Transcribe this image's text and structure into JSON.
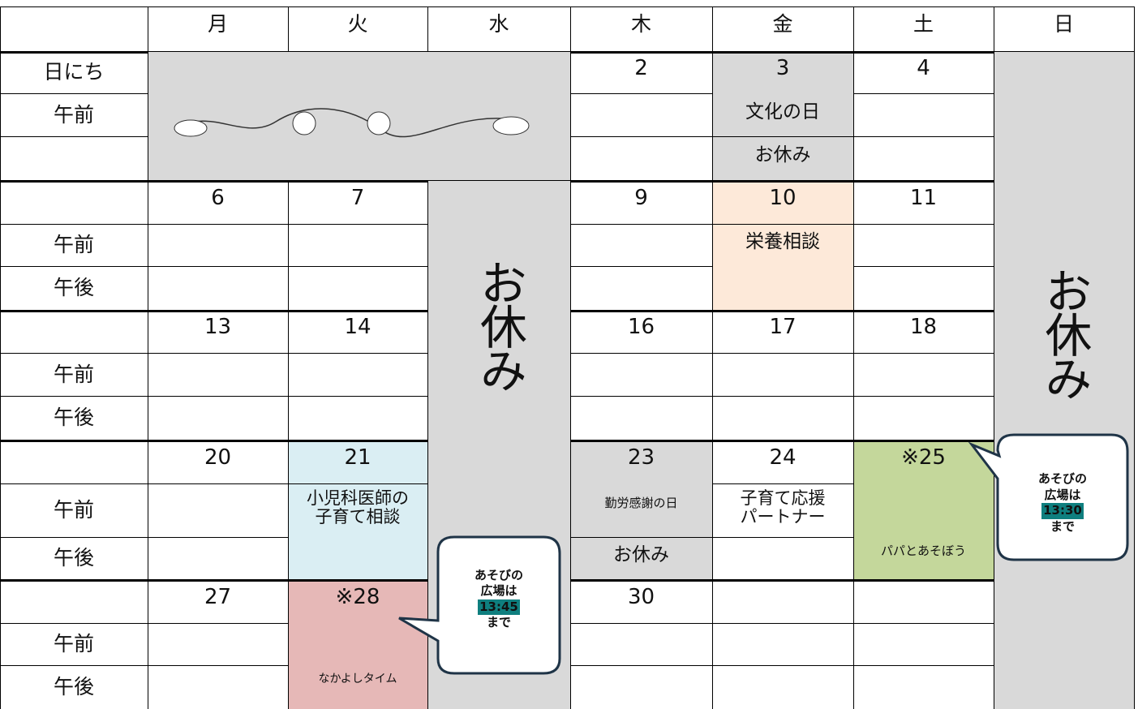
{
  "header": {
    "days": [
      "月",
      "火",
      "水",
      "木",
      "金",
      "土",
      "日"
    ]
  },
  "row_labels": {
    "date": "日にち",
    "am": "午前",
    "pm": "午後"
  },
  "closed": "お休み",
  "weeks": [
    {
      "dates": [
        null,
        null,
        null,
        2,
        3,
        4,
        null
      ],
      "am": [
        null,
        null,
        null,
        null,
        "文化の日",
        null,
        null
      ],
      "pm": [
        null,
        null,
        null,
        null,
        "お休み",
        null,
        null
      ]
    },
    {
      "dates": [
        6,
        7,
        null,
        9,
        10,
        11,
        null
      ],
      "am": [
        null,
        null,
        null,
        null,
        "栄養相談",
        null,
        null
      ],
      "pm": [
        null,
        null,
        null,
        null,
        null,
        null,
        null
      ]
    },
    {
      "dates": [
        13,
        14,
        null,
        16,
        17,
        18,
        null
      ],
      "am": [
        null,
        null,
        null,
        null,
        null,
        null,
        null
      ],
      "pm": [
        null,
        null,
        null,
        null,
        null,
        null,
        null
      ]
    },
    {
      "dates": [
        20,
        21,
        null,
        23,
        24,
        "※25",
        null
      ],
      "am": [
        null,
        [
          "小児科医師の",
          "子育て相談"
        ],
        null,
        "勤労感謝の日",
        [
          "子育て応援",
          "パートナー"
        ],
        null,
        null
      ],
      "pm": [
        null,
        null,
        null,
        "お休み",
        null,
        "パパとあそぼう",
        null
      ]
    },
    {
      "dates": [
        27,
        "※28",
        null,
        30,
        null,
        null,
        null
      ],
      "am": [
        null,
        null,
        null,
        null,
        null,
        null,
        null
      ],
      "pm": [
        null,
        "なかよしタイム",
        null,
        null,
        null,
        null,
        null
      ]
    }
  ],
  "callouts": [
    {
      "lines": [
        "あそびの",
        "広場は"
      ],
      "time": "13:45",
      "until": "まで"
    },
    {
      "lines": [
        "あそびの",
        "広場は"
      ],
      "time": "13:30",
      "until": "まで"
    }
  ]
}
